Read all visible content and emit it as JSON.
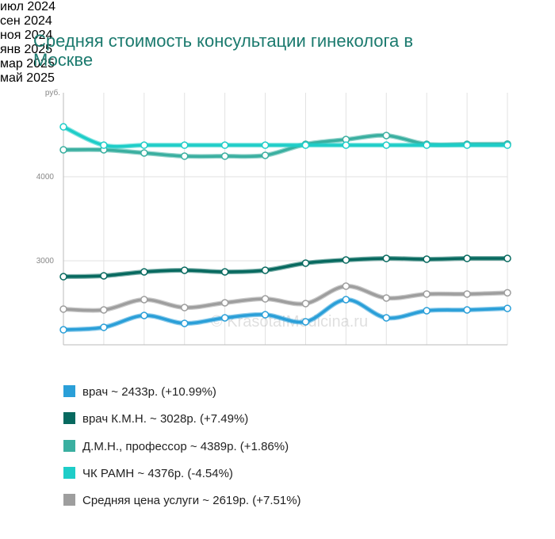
{
  "chart_data": {
    "type": "line",
    "title": "Средняя стоимость консультации гинеколога в Москве",
    "y_label": "руб.",
    "watermark": "© KrasotaIMedicina.ru",
    "categories": [
      null,
      "июл\n2024",
      null,
      "сен\n2024",
      null,
      "ноя\n2024",
      null,
      "янв\n2025",
      null,
      "мар\n2025",
      null,
      "май\n2025"
    ],
    "ylim": [
      2000,
      5000
    ],
    "yticks": [
      3000,
      4000
    ],
    "grid": true,
    "series": [
      {
        "name": "врач ~ 2433р. (+10.99%)",
        "color": "#2a9fd8",
        "values": [
          2179,
          2208,
          2349,
          2255,
          2321,
          2358,
          2274,
          2538,
          2321,
          2406,
          2415,
          2433
        ]
      },
      {
        "name": "врач К.М.Н. ~ 3028р. (+7.49%)",
        "color": "#07695f",
        "values": [
          2811,
          2821,
          2868,
          2887,
          2868,
          2887,
          2972,
          3009,
          3028,
          3019,
          3028,
          3028
        ]
      },
      {
        "name": "Д.М.Н., профессор ~ 4389р. (+1.86%)",
        "color": "#3aafa0",
        "values": [
          4321,
          4321,
          4283,
          4245,
          4245,
          4255,
          4387,
          4443,
          4491,
          4387,
          4387,
          4389
        ]
      },
      {
        "name": "ЧК РАМН ~ 4376р. (-4.54%)",
        "color": "#1ecdc8",
        "values": [
          4594,
          4376,
          4376,
          4376,
          4376,
          4376,
          4376,
          4376,
          4376,
          4376,
          4376,
          4376
        ]
      },
      {
        "name": "Средняя цена услуги ~ 2619р. (+7.51%)",
        "color": "#9e9e9e",
        "values": [
          2425,
          2415,
          2538,
          2443,
          2500,
          2547,
          2491,
          2698,
          2557,
          2604,
          2604,
          2619
        ]
      }
    ]
  }
}
